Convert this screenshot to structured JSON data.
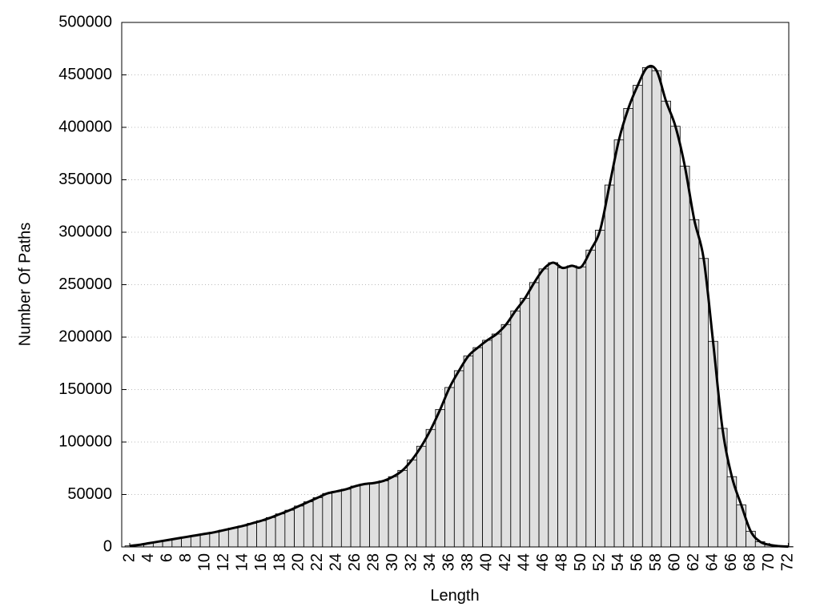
{
  "chart_data": {
    "type": "histogram",
    "x_label": "Length",
    "y_label": "Number Of Paths",
    "x": [
      2,
      3,
      4,
      5,
      6,
      7,
      8,
      9,
      10,
      11,
      12,
      13,
      14,
      15,
      16,
      17,
      18,
      19,
      20,
      21,
      22,
      23,
      24,
      25,
      26,
      27,
      28,
      29,
      30,
      31,
      32,
      33,
      34,
      35,
      36,
      37,
      38,
      39,
      40,
      41,
      42,
      43,
      44,
      45,
      46,
      47,
      48,
      49,
      50,
      51,
      52,
      53,
      54,
      55,
      56,
      57,
      58,
      59,
      60,
      61,
      62,
      63,
      64,
      65,
      66,
      67,
      68,
      69,
      70,
      71,
      72
    ],
    "values": [
      1000,
      2000,
      3500,
      5000,
      6500,
      8000,
      9500,
      11000,
      12500,
      14000,
      16000,
      18000,
      20000,
      22500,
      25000,
      28000,
      31500,
      35000,
      39000,
      43000,
      47000,
      51000,
      53000,
      55000,
      58000,
      60000,
      61000,
      63000,
      67000,
      73000,
      83000,
      96000,
      112000,
      131000,
      152000,
      168000,
      182000,
      190000,
      197000,
      203000,
      212000,
      225000,
      237000,
      252000,
      265000,
      271000,
      266000,
      268000,
      267000,
      283000,
      302000,
      345000,
      388000,
      418000,
      440000,
      457000,
      454000,
      425000,
      401000,
      363000,
      312000,
      275000,
      196000,
      113000,
      67000,
      40000,
      15000,
      5000,
      2000,
      800,
      300
    ],
    "color": "#e0e0e0",
    "curve": true,
    "curve_color": "#000000",
    "xlim": [
      1.15,
      72.05
    ],
    "xticks": [
      2,
      4,
      6,
      8,
      10,
      12,
      14,
      16,
      18,
      20,
      22,
      24,
      26,
      28,
      30,
      32,
      34,
      36,
      38,
      40,
      42,
      44,
      46,
      48,
      50,
      52,
      54,
      56,
      58,
      60,
      62,
      64,
      66,
      68,
      70,
      72
    ],
    "ylim": [
      0,
      500000
    ],
    "yticks": [
      0,
      50000,
      100000,
      150000,
      200000,
      250000,
      300000,
      350000,
      400000,
      450000,
      500000
    ],
    "grid": true
  }
}
